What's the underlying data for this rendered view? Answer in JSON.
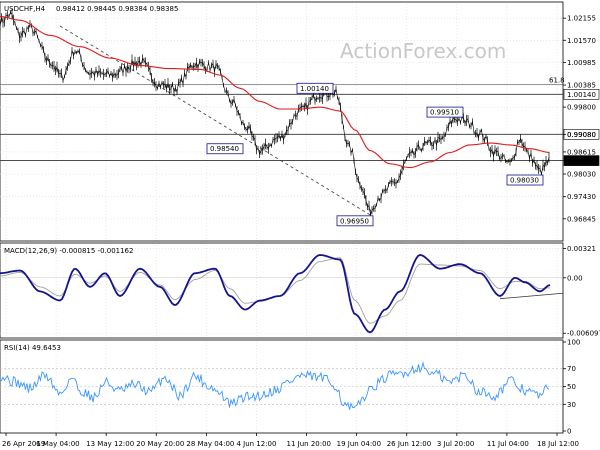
{
  "header": {
    "symbol": "USDCHF,H4",
    "ohlc": "0.98412 0.98445 0.98384 0.98385"
  },
  "watermark": "ActionForex.com",
  "colors": {
    "price": "#000000",
    "ma": "#e0191b",
    "macd": "#14148c",
    "signal": "#a0a0a0",
    "rsi": "#3c96ff",
    "level": "#333333",
    "label_box": "#14148c"
  },
  "chart_data": [
    {
      "type": "line",
      "title": "USDCHF,H4",
      "ylim": [
        0.9631,
        1.0253
      ],
      "y_ticks": [
        "1.02155",
        "1.01570",
        "1.00985",
        "1.00385",
        "0.99800",
        "0.99080",
        "0.98615",
        "0.98385",
        "0.98030",
        "0.97430",
        "0.96845"
      ],
      "x_ticks": [
        "26 Apr 2019",
        "6 May 04:00",
        "13 May 12:00",
        "20 May 20:00",
        "28 May 04:00",
        "4 Jun 12:00",
        "11 Jun 20:00",
        "19 Jun 04:00",
        "26 Jun 12:00",
        "3 Jul 20:00",
        "11 Jul 04:00",
        "18 Jul 12:00"
      ],
      "series": [
        {
          "key": "price",
          "anchors": [
            [
              0,
              1.0205
            ],
            [
              10,
              1.0225
            ],
            [
              20,
              1.017
            ],
            [
              30,
              1.019
            ],
            [
              50,
              1.01
            ],
            [
              62,
              1.006
            ],
            [
              75,
              1.013
            ],
            [
              90,
              1.007
            ],
            [
              110,
              1.0065
            ],
            [
              140,
              1.01
            ],
            [
              160,
              1.004
            ],
            [
              175,
              1.003
            ],
            [
              195,
              1.0095
            ],
            [
              215,
              1.0085
            ],
            [
              232,
              0.9995
            ],
            [
              245,
              0.993
            ],
            [
              260,
              0.9865
            ],
            [
              280,
              0.99
            ],
            [
              300,
              0.997
            ],
            [
              320,
              1.0015
            ],
            [
              335,
              1.0018
            ],
            [
              350,
              0.987
            ],
            [
              360,
              0.978
            ],
            [
              370,
              0.9705
            ],
            [
              380,
              0.9745
            ],
            [
              395,
              0.978
            ],
            [
              410,
              0.985
            ],
            [
              425,
              0.988
            ],
            [
              440,
              0.989
            ],
            [
              455,
              0.995
            ],
            [
              468,
              0.994
            ],
            [
              480,
              0.991
            ],
            [
              495,
              0.986
            ],
            [
              510,
              0.983
            ],
            [
              520,
              0.9895
            ],
            [
              530,
              0.985
            ],
            [
              540,
              0.981
            ],
            [
              550,
              0.9839
            ]
          ]
        },
        {
          "key": "ma",
          "anchors": [
            [
              0,
              1.022
            ],
            [
              20,
              1.021
            ],
            [
              50,
              1.017
            ],
            [
              80,
              1.014
            ],
            [
              110,
              1.011
            ],
            [
              140,
              1.009
            ],
            [
              170,
              1.0082
            ],
            [
              200,
              1.008
            ],
            [
              220,
              1.0065
            ],
            [
              240,
              1.003
            ],
            [
              260,
              0.9995
            ],
            [
              280,
              0.9975
            ],
            [
              300,
              0.9975
            ],
            [
              320,
              0.998
            ],
            [
              340,
              0.997
            ],
            [
              355,
              0.992
            ],
            [
              370,
              0.9865
            ],
            [
              390,
              0.983
            ],
            [
              410,
              0.982
            ],
            [
              430,
              0.9835
            ],
            [
              450,
              0.986
            ],
            [
              470,
              0.988
            ],
            [
              490,
              0.9885
            ],
            [
              510,
              0.988
            ],
            [
              530,
              0.987
            ],
            [
              550,
              0.986
            ]
          ]
        }
      ],
      "levels": [
        {
          "name": "retracement-61.8",
          "value": 1.004,
          "label": "61.8"
        },
        {
          "name": "level-1.00140",
          "value": 1.0014,
          "label": "1.00140"
        },
        {
          "name": "level-0.99080",
          "value": 0.9908,
          "label": "0.99080"
        },
        {
          "name": "level-0.98385",
          "value": 0.98385,
          "label": "0.98385"
        }
      ],
      "annotations": [
        {
          "name": "label-1.00140",
          "text": "1.00140",
          "x": 315,
          "y": 1.0014
        },
        {
          "name": "label-0.98540",
          "text": "0.98540",
          "x": 225,
          "y": 0.9854
        },
        {
          "name": "label-0.96950",
          "text": "0.96950",
          "x": 355,
          "y": 0.9695
        },
        {
          "name": "label-0.99510",
          "text": "0.99510",
          "x": 445,
          "y": 0.9951
        },
        {
          "name": "label-0.98030",
          "text": "0.98030",
          "x": 525,
          "y": 0.9803
        }
      ]
    },
    {
      "type": "line",
      "title": "MACD(12,26,9) -0.000815 -0.001162",
      "ylim": [
        -0.0064,
        0.0036
      ],
      "y_ticks": [
        "0.00321",
        "0.00",
        "-0.006097"
      ],
      "series": [
        {
          "key": "macd",
          "anchors": [
            [
              0,
              0.0005
            ],
            [
              20,
              0.0008
            ],
            [
              40,
              -0.0015
            ],
            [
              60,
              -0.0025
            ],
            [
              75,
              0.001
            ],
            [
              90,
              -0.001
            ],
            [
              105,
              0.0005
            ],
            [
              120,
              -0.002
            ],
            [
              140,
              0.001
            ],
            [
              160,
              -0.001
            ],
            [
              175,
              -0.003
            ],
            [
              195,
              0.0005
            ],
            [
              215,
              0.001
            ],
            [
              230,
              -0.002
            ],
            [
              245,
              -0.0035
            ],
            [
              260,
              -0.0025
            ],
            [
              280,
              -0.002
            ],
            [
              300,
              0.0005
            ],
            [
              320,
              0.0025
            ],
            [
              340,
              0.002
            ],
            [
              355,
              -0.004
            ],
            [
              370,
              -0.006
            ],
            [
              385,
              -0.0035
            ],
            [
              400,
              -0.0015
            ],
            [
              420,
              0.0025
            ],
            [
              440,
              0.001
            ],
            [
              460,
              0.0015
            ],
            [
              480,
              0.0005
            ],
            [
              500,
              -0.002
            ],
            [
              515,
              0.0
            ],
            [
              525,
              -0.0005
            ],
            [
              540,
              -0.0015
            ],
            [
              550,
              -0.0008
            ]
          ]
        },
        {
          "key": "signal",
          "anchors": [
            [
              0,
              0.0002
            ],
            [
              20,
              0.0006
            ],
            [
              40,
              -0.001
            ],
            [
              60,
              -0.002
            ],
            [
              75,
              0.0004
            ],
            [
              90,
              -0.0006
            ],
            [
              105,
              0.0002
            ],
            [
              120,
              -0.0015
            ],
            [
              140,
              0.0006
            ],
            [
              160,
              -0.0008
            ],
            [
              175,
              -0.0024
            ],
            [
              195,
              -0.0002
            ],
            [
              215,
              0.0008
            ],
            [
              230,
              -0.0012
            ],
            [
              245,
              -0.0028
            ],
            [
              260,
              -0.0026
            ],
            [
              280,
              -0.002
            ],
            [
              300,
              -0.0003
            ],
            [
              320,
              0.0018
            ],
            [
              340,
              0.0022
            ],
            [
              355,
              -0.0025
            ],
            [
              370,
              -0.005
            ],
            [
              385,
              -0.0042
            ],
            [
              400,
              -0.0025
            ],
            [
              420,
              0.0015
            ],
            [
              440,
              0.0014
            ],
            [
              460,
              0.0013
            ],
            [
              480,
              0.0008
            ],
            [
              500,
              -0.0012
            ],
            [
              515,
              -0.0004
            ],
            [
              525,
              -0.0004
            ],
            [
              540,
              -0.0012
            ],
            [
              550,
              -0.0011
            ]
          ]
        }
      ],
      "trendline": [
        [
          500,
          -0.0023
        ],
        [
          563,
          -0.0017
        ]
      ]
    },
    {
      "type": "line",
      "title": "RSI(14) 49.6453",
      "ylim": [
        0,
        100
      ],
      "y_ticks": [
        "100",
        "70",
        "50",
        "30",
        "0"
      ],
      "series": [
        {
          "key": "rsi",
          "anchors": [
            [
              0,
              62
            ],
            [
              15,
              55
            ],
            [
              30,
              48
            ],
            [
              45,
              63
            ],
            [
              60,
              42
            ],
            [
              72,
              60
            ],
            [
              80,
              45
            ],
            [
              95,
              38
            ],
            [
              105,
              55
            ],
            [
              120,
              45
            ],
            [
              135,
              52
            ],
            [
              150,
              44
            ],
            [
              165,
              60
            ],
            [
              180,
              40
            ],
            [
              195,
              62
            ],
            [
              210,
              50
            ],
            [
              220,
              42
            ],
            [
              230,
              30
            ],
            [
              245,
              38
            ],
            [
              260,
              40
            ],
            [
              275,
              46
            ],
            [
              290,
              56
            ],
            [
              300,
              62
            ],
            [
              320,
              60
            ],
            [
              335,
              52
            ],
            [
              345,
              28
            ],
            [
              355,
              24
            ],
            [
              365,
              40
            ],
            [
              375,
              52
            ],
            [
              390,
              62
            ],
            [
              405,
              66
            ],
            [
              420,
              72
            ],
            [
              435,
              64
            ],
            [
              450,
              55
            ],
            [
              465,
              63
            ],
            [
              480,
              44
            ],
            [
              495,
              40
            ],
            [
              510,
              56
            ],
            [
              525,
              46
            ],
            [
              540,
              40
            ],
            [
              550,
              50
            ]
          ]
        }
      ]
    }
  ]
}
